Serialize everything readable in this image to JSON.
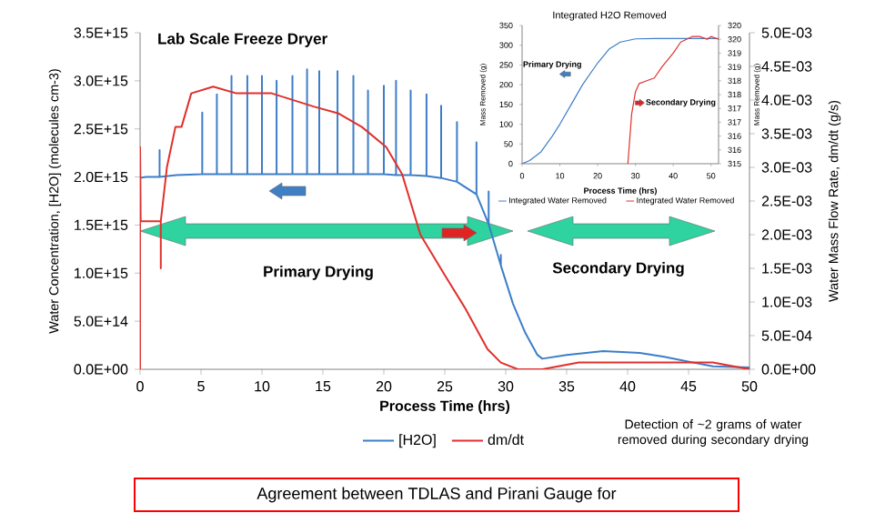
{
  "chart_data": [
    {
      "type": "line",
      "title": "Lab Scale Freeze Dryer",
      "xlabel": "Process Time (hrs)",
      "ylabel": "Water Concentration, [H2O]  (molecules cm-3)",
      "y2label": "Water Mass Flow Rate, dm/dt  (g/s)",
      "xlim": [
        0,
        50
      ],
      "xticks": [
        0,
        5,
        10,
        15,
        20,
        25,
        30,
        35,
        40,
        45,
        50
      ],
      "ylim": [
        0,
        3500000000000000.0
      ],
      "yticks": [
        {
          "value": 0,
          "label": "0.0E+00"
        },
        {
          "value": 500000000000000.0,
          "label": "5.0E+14"
        },
        {
          "value": 1000000000000000.0,
          "label": "1.0E+15"
        },
        {
          "value": 1500000000000000.0,
          "label": "1.5E+15"
        },
        {
          "value": 2000000000000000.0,
          "label": "2.0E+15"
        },
        {
          "value": 2500000000000000.0,
          "label": "2.5E+15"
        },
        {
          "value": 3000000000000000.0,
          "label": "3.0E+15"
        },
        {
          "value": 3500000000000000.0,
          "label": "3.5E+15"
        }
      ],
      "y2lim": [
        0,
        0.005
      ],
      "y2ticks": [
        {
          "value": 0,
          "label": "0.0E+00"
        },
        {
          "value": 0.0005,
          "label": "5.0E-04"
        },
        {
          "value": 0.001,
          "label": "1.0E-03"
        },
        {
          "value": 0.0015,
          "label": "1.5E-03"
        },
        {
          "value": 0.002,
          "label": "2.0E-03"
        },
        {
          "value": 0.0025,
          "label": "2.5E-03"
        },
        {
          "value": 0.003,
          "label": "3.0E-03"
        },
        {
          "value": 0.0035,
          "label": "3.5E-03"
        },
        {
          "value": 0.004,
          "label": "4.0E-03"
        },
        {
          "value": 0.0045,
          "label": "4.5E-03"
        },
        {
          "value": 0.005,
          "label": "5.0E-03"
        }
      ],
      "legend": "bottom",
      "series": [
        {
          "name": "[H2O]",
          "color": "#3d7ec8",
          "x": [
            0,
            0.5,
            1.6,
            1.6,
            1.6,
            3,
            5.1,
            5.1,
            5.1,
            6.3,
            6.3,
            6.3,
            7.5,
            7.5,
            7.5,
            8.8,
            8.8,
            8.8,
            10,
            10,
            10,
            11.2,
            11.2,
            11.2,
            12.5,
            12.5,
            12.5,
            13.7,
            13.7,
            13.7,
            14.7,
            14.7,
            14.7,
            16.2,
            16.2,
            16.2,
            17.5,
            17.5,
            17.5,
            18.7,
            18.7,
            18.7,
            20,
            20,
            20,
            21,
            21,
            21,
            22.2,
            22.2,
            22.2,
            23.5,
            23.5,
            23.5,
            24.7,
            24.7,
            24.7,
            26,
            26,
            26,
            27.6,
            27.6,
            27.6,
            28.6,
            28.6,
            28.6,
            29.6,
            29.6,
            29.6,
            30.6,
            31.6,
            32.6,
            33,
            35,
            38,
            41,
            43,
            45,
            47,
            50
          ],
          "values": [
            1990000000000000.0,
            2000000000000000.0,
            2000000000000000.0,
            2280000000000000.0,
            2000000000000000.0,
            2020000000000000.0,
            2030000000000000.0,
            2670000000000000.0,
            2030000000000000.0,
            2030000000000000.0,
            2860000000000000.0,
            2030000000000000.0,
            2030000000000000.0,
            3050000000000000.0,
            2030000000000000.0,
            2030000000000000.0,
            3050000000000000.0,
            2030000000000000.0,
            2030000000000000.0,
            3050000000000000.0,
            2030000000000000.0,
            2030000000000000.0,
            3000000000000000.0,
            2030000000000000.0,
            2030000000000000.0,
            3050000000000000.0,
            2030000000000000.0,
            2030000000000000.0,
            3120000000000000.0,
            2030000000000000.0,
            2030000000000000.0,
            3100000000000000.0,
            2030000000000000.0,
            2030000000000000.0,
            3100000000000000.0,
            2030000000000000.0,
            2030000000000000.0,
            3050000000000000.0,
            2030000000000000.0,
            2030000000000000.0,
            2900000000000000.0,
            2030000000000000.0,
            2030000000000000.0,
            2950000000000000.0,
            2030000000000000.0,
            2020000000000000.0,
            3000000000000000.0,
            2020000000000000.0,
            2020000000000000.0,
            2900000000000000.0,
            2020000000000000.0,
            2010000000000000.0,
            2860000000000000.0,
            2010000000000000.0,
            1990000000000000.0,
            2740000000000000.0,
            1990000000000000.0,
            1950000000000000.0,
            2570000000000000.0,
            1950000000000000.0,
            1820000000000000.0,
            2360000000000000.0,
            1820000000000000.0,
            1510000000000000.0,
            1850000000000000.0,
            1510000000000000.0,
            1080000000000000.0,
            1190000000000000.0,
            1080000000000000.0,
            680000000000000.0,
            380000000000000.0,
            150000000000000.0,
            110000000000000.0,
            150000000000000.0,
            190000000000000.0,
            170000000000000.0,
            130000000000000.0,
            80000000000000.0,
            30000000000000.0,
            20000000000000.0
          ]
        },
        {
          "name": "dm/dt",
          "color": "#e0302c",
          "axis": "y2",
          "x": [
            0,
            0,
            0.05,
            1,
            1.7,
            1.7,
            1.7,
            2.2,
            2.9,
            3.4,
            4.2,
            6,
            7.9,
            10.8,
            14.3,
            16.3,
            18.2,
            20.2,
            21.5,
            23,
            25,
            26.7,
            27.6,
            28.5,
            29.6,
            31,
            33,
            36,
            38,
            41,
            44,
            47,
            50
          ],
          "values": [
            0,
            0.0033,
            0.0022,
            0.0022,
            0.0022,
            0.0015,
            0.0022,
            0.003,
            0.0036,
            0.0036,
            0.0041,
            0.0042,
            0.0041,
            0.0041,
            0.0039,
            0.0038,
            0.0036,
            0.0033,
            0.0029,
            0.002,
            0.0014,
            0.0009,
            0.0006,
            0.0003,
            0.0001,
            0,
            0,
            0.0001,
            0.0001,
            0.0001,
            0.0001,
            0.0001,
            0
          ]
        }
      ],
      "annotations": [
        "Primary Drying",
        "Secondary Drying",
        "Detection of ~2 grams of water removed during secondary drying",
        "Agreement between TDLAS and Pirani Gauge for"
      ]
    },
    {
      "type": "line",
      "title": "Integrated H2O Removed",
      "xlabel": "Process Time (hrs)",
      "ylabel": "Mass Removed (g)",
      "y2label": "Mass Removed (g)",
      "xlim": [
        0,
        52
      ],
      "xticks": [
        0,
        10,
        20,
        30,
        40,
        50
      ],
      "ylim": [
        0,
        350
      ],
      "yticks": [
        0,
        50,
        100,
        150,
        200,
        250,
        300,
        350
      ],
      "y2lim": [
        315,
        320
      ],
      "y2ticks": [
        {
          "value": 315,
          "label": "315"
        },
        {
          "value": 315.5,
          "label": "316"
        },
        {
          "value": 316,
          "label": "316"
        },
        {
          "value": 316.5,
          "label": "317"
        },
        {
          "value": 317,
          "label": "317"
        },
        {
          "value": 317.5,
          "label": "318"
        },
        {
          "value": 318,
          "label": "318"
        },
        {
          "value": 318.5,
          "label": "319"
        },
        {
          "value": 319,
          "label": "319"
        },
        {
          "value": 319.5,
          "label": "320"
        },
        {
          "value": 320,
          "label": "320"
        }
      ],
      "legend": "bottom",
      "series": [
        {
          "name": "Integrated Water Removed",
          "color": "#3d7ec8",
          "x": [
            0,
            2,
            5,
            8,
            10,
            13,
            16,
            20,
            23,
            26,
            30,
            35,
            52
          ],
          "values": [
            0,
            8,
            30,
            70,
            100,
            150,
            200,
            255,
            290,
            308,
            316,
            317,
            317
          ]
        },
        {
          "name": "Integrated Water Removed",
          "color": "#e0302c",
          "axis": "y2",
          "x": [
            28,
            29,
            30,
            31,
            33,
            35,
            37,
            40,
            42,
            45,
            47,
            49,
            50,
            52
          ],
          "values": [
            315,
            316.8,
            317.6,
            317.9,
            318.0,
            318.1,
            318.5,
            319.0,
            319.4,
            319.6,
            319.6,
            319.5,
            319.6,
            319.5
          ]
        }
      ],
      "annotations": [
        "Primary Drying",
        "Secondary Drying"
      ]
    }
  ]
}
